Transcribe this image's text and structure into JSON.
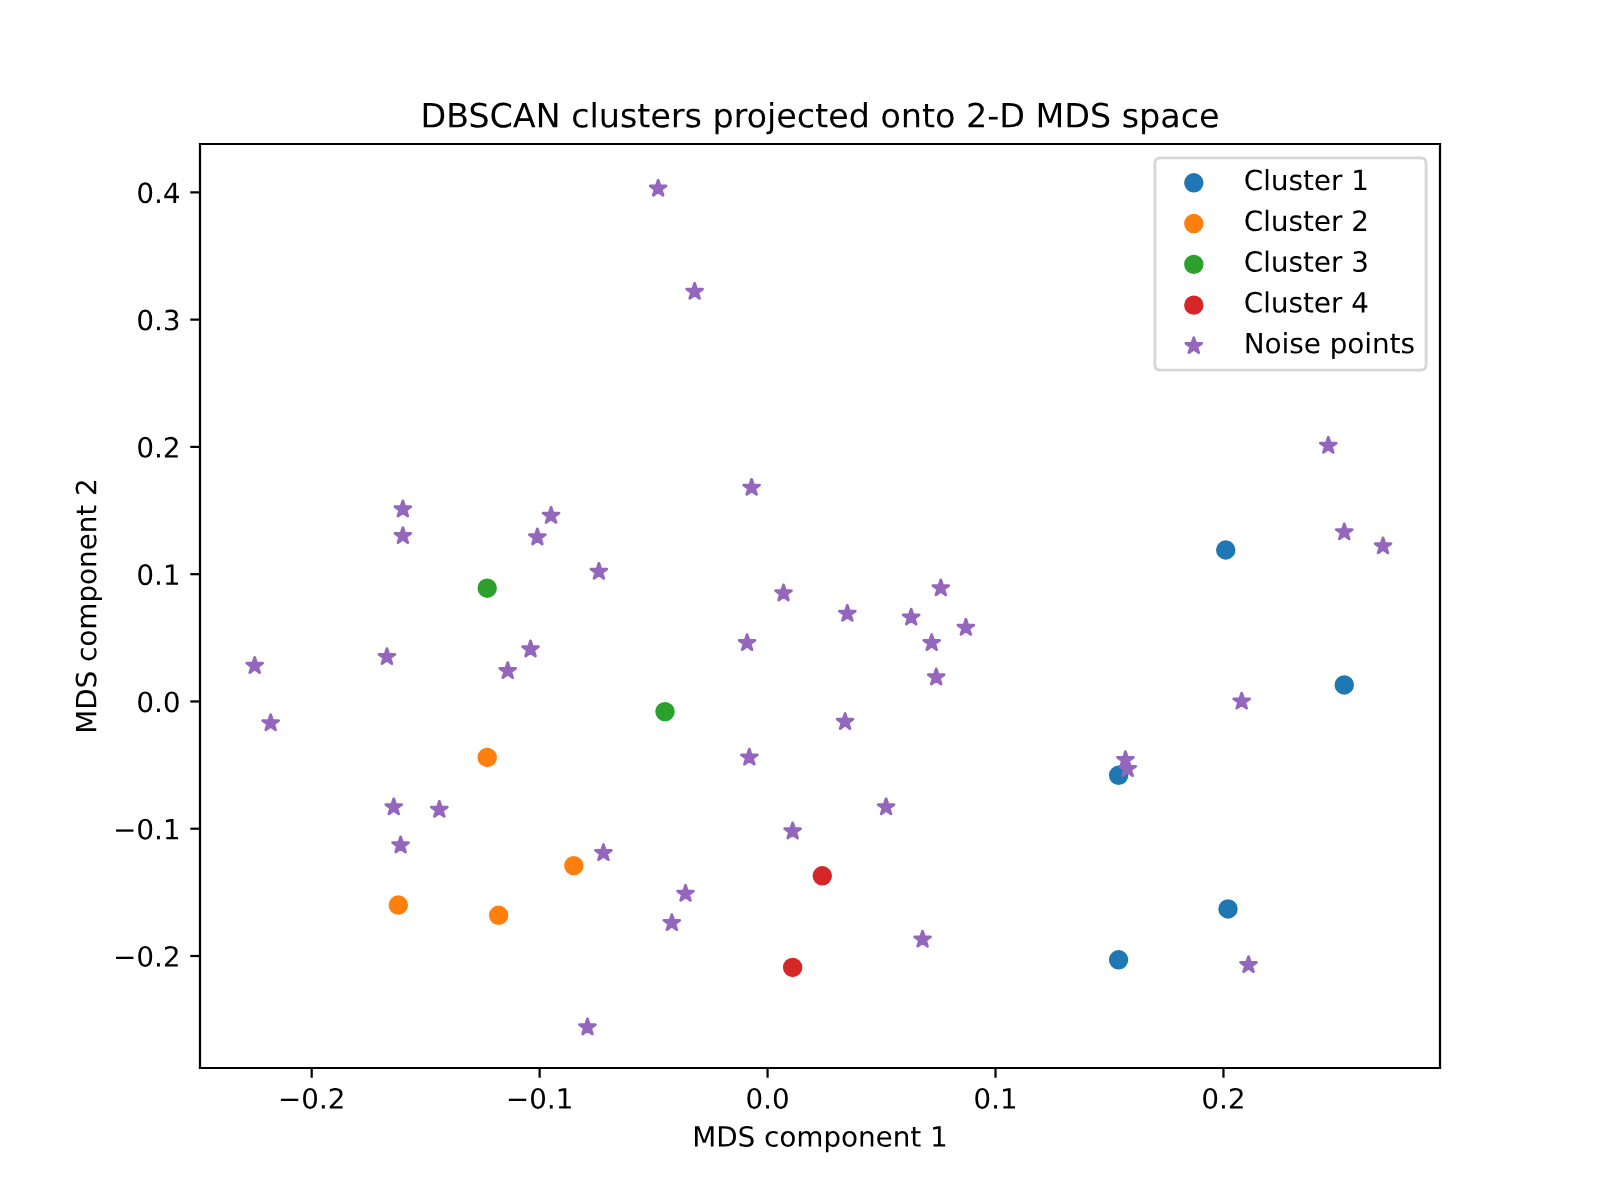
{
  "chart_data": {
    "type": "scatter",
    "title": "DBSCAN clusters projected onto 2-D MDS space",
    "xlabel": "MDS component 1",
    "ylabel": "MDS component 2",
    "xlim": [
      -0.249,
      0.295
    ],
    "ylim": [
      -0.288,
      0.438
    ],
    "xticks": [
      {
        "value": -0.2,
        "label": "−0.2"
      },
      {
        "value": -0.1,
        "label": "−0.1"
      },
      {
        "value": 0,
        "label": "0.0"
      },
      0.1,
      0.2
    ],
    "yticks": [
      {
        "value": -0.2,
        "label": "−0.2"
      },
      {
        "value": -0.1,
        "label": "−0.1"
      },
      {
        "value": 0,
        "label": "0.0"
      },
      0.1,
      0.2,
      0.3,
      0.4
    ],
    "grid": false,
    "legend": "top right",
    "series": [
      {
        "name": "Cluster 1",
        "color": "#1f77b4",
        "marker": "circle",
        "x": [
          0.201,
          0.253,
          0.154,
          0.202,
          0.154
        ],
        "values": [
          0.119,
          0.013,
          -0.058,
          -0.163,
          -0.203
        ]
      },
      {
        "name": "Cluster 2",
        "color": "#ff7f0e",
        "marker": "circle",
        "x": [
          -0.123,
          -0.085,
          -0.162,
          -0.118
        ],
        "values": [
          -0.044,
          -0.129,
          -0.16,
          -0.168
        ]
      },
      {
        "name": "Cluster 3",
        "color": "#2ca02c",
        "marker": "circle",
        "x": [
          -0.123,
          -0.045
        ],
        "values": [
          0.089,
          -0.008
        ]
      },
      {
        "name": "Cluster 4",
        "color": "#d62728",
        "marker": "circle",
        "x": [
          0.024,
          0.011
        ],
        "values": [
          -0.137,
          -0.209
        ]
      },
      {
        "name": "Noise points",
        "color": "#9467bd",
        "marker": "star",
        "x": [
          -0.048,
          -0.032,
          0.246,
          0.253,
          0.27,
          -0.16,
          -0.095,
          -0.007,
          -0.16,
          -0.101,
          -0.074,
          0.007,
          0.076,
          0.035,
          0.063,
          0.087,
          0.072,
          -0.009,
          0.074,
          -0.104,
          -0.114,
          -0.167,
          -0.225,
          -0.218,
          0.208,
          -0.008,
          0.157,
          0.158,
          0.034,
          -0.164,
          -0.144,
          0.052,
          0.011,
          -0.161,
          -0.072,
          -0.036,
          -0.042,
          0.068,
          0.211,
          -0.079
        ],
        "values": [
          0.403,
          0.322,
          0.201,
          0.133,
          0.122,
          0.151,
          0.146,
          0.168,
          0.13,
          0.129,
          0.102,
          0.085,
          0.089,
          0.069,
          0.066,
          0.058,
          0.046,
          0.046,
          0.019,
          0.041,
          0.024,
          0.035,
          0.028,
          -0.017,
          0.0,
          -0.044,
          -0.046,
          -0.053,
          -0.016,
          -0.083,
          -0.085,
          -0.083,
          -0.102,
          -0.113,
          -0.119,
          -0.151,
          -0.174,
          -0.187,
          -0.207,
          -0.256
        ]
      }
    ]
  }
}
